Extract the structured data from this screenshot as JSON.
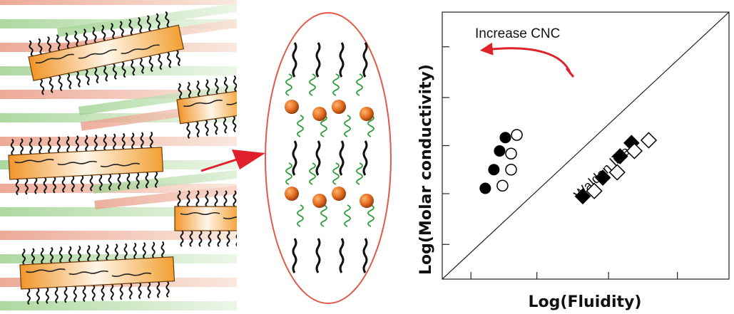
{
  "chart_data": {
    "type": "scatter",
    "xlabel": "Log(Fluidity)",
    "ylabel": "Log(Molar conductivity)",
    "annotations": [
      "Increase CNC",
      "Walden line"
    ],
    "series": [
      {
        "marker": "filled-circle",
        "points": [
          [
            0.15,
            0.34
          ],
          [
            0.18,
            0.41
          ],
          [
            0.2,
            0.48
          ],
          [
            0.22,
            0.53
          ]
        ]
      },
      {
        "marker": "open-circle",
        "points": [
          [
            0.21,
            0.35
          ],
          [
            0.24,
            0.41
          ],
          [
            0.24,
            0.47
          ],
          [
            0.26,
            0.54
          ]
        ]
      },
      {
        "marker": "filled-diamond",
        "points": [
          [
            0.49,
            0.31
          ],
          [
            0.56,
            0.38
          ],
          [
            0.62,
            0.46
          ],
          [
            0.66,
            0.51
          ]
        ]
      },
      {
        "marker": "open-diamond",
        "points": [
          [
            0.53,
            0.33
          ],
          [
            0.61,
            0.4
          ],
          [
            0.67,
            0.48
          ],
          [
            0.72,
            0.52
          ]
        ]
      }
    ],
    "reference_line": {
      "name": "Walden line",
      "slope": 1
    },
    "xlim": [
      0,
      1
    ],
    "ylim": [
      0,
      1
    ],
    "tick_labels": false,
    "grid": false,
    "colors": {
      "filled": "#000000",
      "open": "#000000",
      "arrow": "#e0202a"
    }
  },
  "schematic": {
    "colors": {
      "stripe_green": "#bfe0b2",
      "stripe_pink": "#f0c3b0",
      "rod_orange": "#f3a23c",
      "rod_light": "#fff2dc",
      "bead": "#d9651a",
      "spring": "#2e9e3b",
      "ellipse": "#e05a48",
      "arrow": "#e0202a"
    }
  }
}
